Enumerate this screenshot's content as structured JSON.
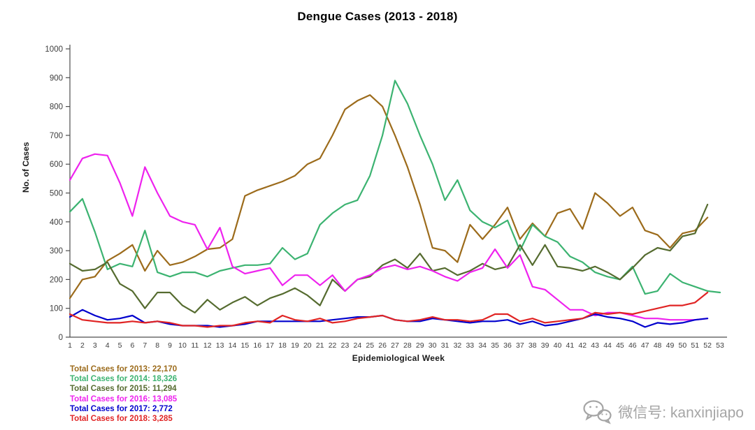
{
  "title": "Dengue Cases (2013 - 2018)",
  "y_axis_label": "No. of Cases",
  "x_axis_label": "Epidemiological Week",
  "watermark": {
    "text": "微信号: kanxinjiapo",
    "icon": "wechat-icon",
    "color": "#a5a5a5"
  },
  "legend": [
    {
      "label": "Total Cases for 2013: 22,170",
      "color": "#9C6B1B"
    },
    {
      "label": "Total Cases for 2014: 18,326",
      "color": "#3CB371"
    },
    {
      "label": "Total Cases for 2015: 11,294",
      "color": "#556B2F"
    },
    {
      "label": "Total Cases for 2016: 13,085",
      "color": "#EE22EE"
    },
    {
      "label": "Total Cases for 2017: 2,772",
      "color": "#0000CD"
    },
    {
      "label": "Total Cases for 2018: 3,285",
      "color": "#E02424"
    }
  ],
  "chart_data": {
    "type": "line",
    "title": "Dengue Cases (2013 - 2018)",
    "xlabel": "Epidemiological Week",
    "ylabel": "No. of Cases",
    "ylim": [
      0,
      1000
    ],
    "y_ticks": [
      0,
      100,
      200,
      300,
      400,
      500,
      600,
      700,
      800,
      900,
      1000
    ],
    "grid": false,
    "legend_position": "bottom-left",
    "x": [
      1,
      2,
      3,
      4,
      5,
      6,
      7,
      8,
      9,
      10,
      11,
      12,
      13,
      14,
      15,
      16,
      17,
      18,
      19,
      20,
      21,
      22,
      23,
      24,
      25,
      26,
      27,
      28,
      29,
      30,
      31,
      32,
      33,
      34,
      35,
      36,
      37,
      38,
      39,
      40,
      41,
      42,
      43,
      44,
      45,
      46,
      47,
      48,
      49,
      50,
      51,
      52,
      53
    ],
    "series": [
      {
        "name": "2013",
        "total": "22,170",
        "color": "#9C6B1B",
        "values": [
          135,
          200,
          210,
          265,
          290,
          320,
          230,
          300,
          250,
          260,
          280,
          305,
          310,
          340,
          490,
          510,
          525,
          540,
          560,
          600,
          620,
          700,
          790,
          820,
          840,
          800,
          700,
          590,
          460,
          310,
          300,
          260,
          390,
          340,
          390,
          450,
          340,
          395,
          350,
          430,
          445,
          375,
          500,
          465,
          420,
          450,
          370,
          355,
          310,
          360,
          370,
          415
        ]
      },
      {
        "name": "2014",
        "total": "18,326",
        "color": "#3CB371",
        "values": [
          435,
          480,
          365,
          235,
          255,
          245,
          370,
          225,
          210,
          225,
          225,
          210,
          230,
          240,
          250,
          250,
          255,
          310,
          270,
          290,
          390,
          430,
          460,
          475,
          560,
          700,
          890,
          810,
          700,
          600,
          475,
          545,
          440,
          400,
          380,
          405,
          300,
          390,
          350,
          330,
          280,
          260,
          225,
          210,
          200,
          245,
          150,
          160,
          220,
          190,
          175,
          160,
          155
        ]
      },
      {
        "name": "2015",
        "total": "11,294",
        "color": "#556B2F",
        "values": [
          255,
          230,
          235,
          260,
          185,
          160,
          100,
          155,
          155,
          110,
          85,
          130,
          95,
          120,
          140,
          110,
          135,
          150,
          170,
          145,
          110,
          200,
          160,
          200,
          210,
          250,
          270,
          240,
          290,
          230,
          240,
          215,
          230,
          255,
          235,
          245,
          320,
          250,
          320,
          245,
          240,
          230,
          245,
          225,
          200,
          240,
          285,
          310,
          300,
          350,
          360,
          460
        ]
      },
      {
        "name": "2016",
        "total": "13,085",
        "color": "#EE22EE",
        "values": [
          545,
          620,
          635,
          630,
          535,
          420,
          590,
          500,
          420,
          400,
          390,
          305,
          380,
          245,
          220,
          230,
          240,
          180,
          215,
          215,
          180,
          215,
          160,
          200,
          215,
          240,
          250,
          235,
          245,
          230,
          210,
          195,
          225,
          240,
          305,
          240,
          285,
          175,
          165,
          130,
          95,
          95,
          75,
          85,
          85,
          75,
          65,
          65,
          60,
          60,
          60,
          65
        ]
      },
      {
        "name": "2017",
        "total": "2,772",
        "color": "#0000CD",
        "values": [
          70,
          95,
          75,
          60,
          65,
          75,
          50,
          55,
          45,
          40,
          40,
          40,
          35,
          40,
          45,
          55,
          55,
          55,
          55,
          55,
          55,
          60,
          65,
          70,
          70,
          75,
          60,
          55,
          55,
          65,
          60,
          55,
          50,
          55,
          55,
          60,
          45,
          55,
          40,
          45,
          55,
          65,
          80,
          70,
          65,
          55,
          35,
          50,
          45,
          50,
          60,
          65
        ]
      },
      {
        "name": "2018",
        "total": "3,285",
        "color": "#E02424",
        "values": [
          80,
          60,
          55,
          50,
          50,
          55,
          50,
          55,
          50,
          40,
          40,
          35,
          40,
          40,
          50,
          55,
          50,
          75,
          60,
          55,
          65,
          50,
          55,
          65,
          70,
          75,
          60,
          55,
          60,
          70,
          60,
          60,
          55,
          60,
          80,
          80,
          55,
          65,
          50,
          55,
          60,
          65,
          85,
          80,
          85,
          80,
          90,
          100,
          110,
          110,
          120,
          155
        ]
      }
    ]
  }
}
